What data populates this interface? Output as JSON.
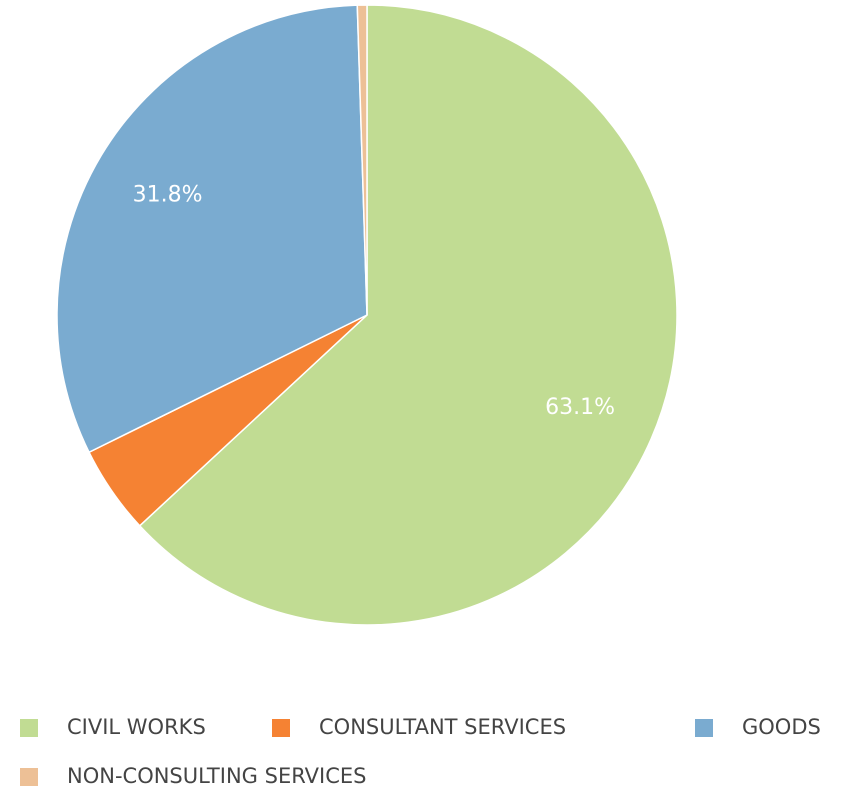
{
  "chart_data": {
    "type": "pie",
    "categories": [
      "CIVIL WORKS",
      "CONSULTANT SERVICES",
      "GOODS",
      "NON-CONSULTING SERVICES"
    ],
    "values": [
      63.1,
      4.6,
      31.8,
      0.5
    ],
    "value_labels": [
      "63.1%",
      null,
      "31.8%",
      null
    ],
    "colors": [
      "#c1dc93",
      "#f58233",
      "#7aabd0",
      "#edc096"
    ],
    "legend": "bottom"
  }
}
